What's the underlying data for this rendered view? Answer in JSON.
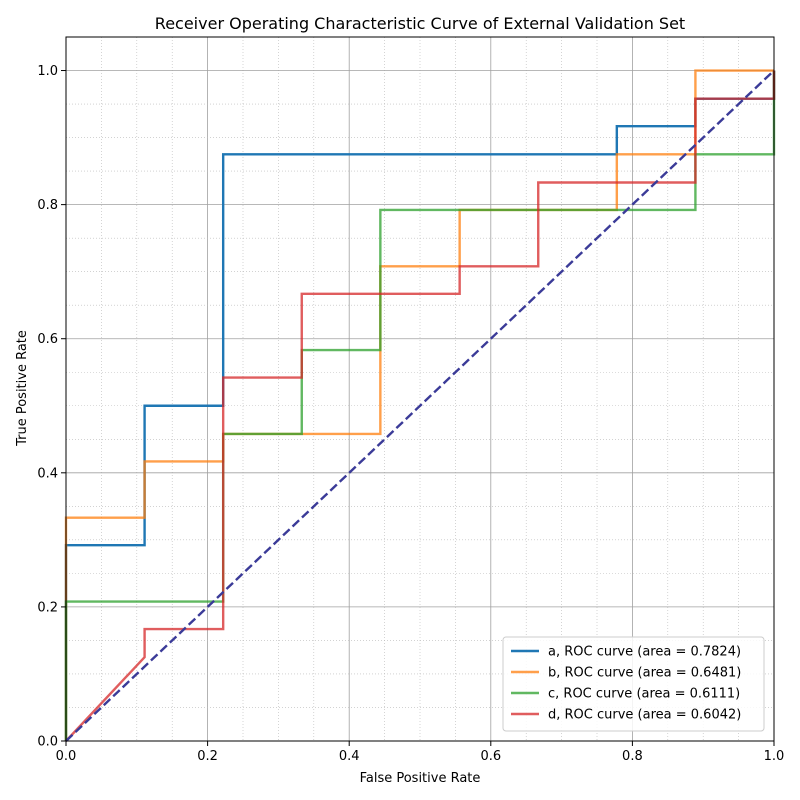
{
  "chart_data": {
    "type": "line",
    "title": "Receiver Operating Characteristic Curve of External Validation Set",
    "xlabel": "False Positive Rate",
    "ylabel": "True Positive Rate",
    "xlim": [
      0.0,
      1.0
    ],
    "ylim": [
      0.0,
      1.05
    ],
    "x_ticks": [
      0.0,
      0.2,
      0.4,
      0.6,
      0.8,
      1.0
    ],
    "y_ticks": [
      0.0,
      0.2,
      0.4,
      0.6,
      0.8,
      1.0
    ],
    "x_tick_labels": [
      "0.0",
      "0.2",
      "0.4",
      "0.6",
      "0.8",
      "1.0"
    ],
    "y_tick_labels": [
      "0.0",
      "0.2",
      "0.4",
      "0.6",
      "0.8",
      "1.0"
    ],
    "grid": "major and minor",
    "legend_position": "lower-right",
    "series": [
      {
        "name": "a, ROC curve (area = 0.7824)",
        "color": "#1f77b4",
        "x": [
          0.0,
          0.0,
          0.111,
          0.111,
          0.222,
          0.222,
          0.778,
          0.778,
          0.889,
          0.889,
          1.0,
          1.0
        ],
        "y": [
          0.0,
          0.292,
          0.292,
          0.5,
          0.5,
          0.875,
          0.875,
          0.917,
          0.917,
          0.958,
          0.958,
          1.0
        ]
      },
      {
        "name": "b, ROC curve (area = 0.6481)",
        "color": "#ff7f0e",
        "x": [
          0.0,
          0.0,
          0.111,
          0.111,
          0.222,
          0.222,
          0.444,
          0.444,
          0.556,
          0.556,
          0.778,
          0.778,
          0.889,
          0.889,
          1.0
        ],
        "y": [
          0.0,
          0.333,
          0.333,
          0.417,
          0.417,
          0.458,
          0.458,
          0.708,
          0.708,
          0.792,
          0.792,
          0.875,
          0.875,
          1.0,
          1.0
        ]
      },
      {
        "name": "c, ROC curve (area = 0.6111)",
        "color": "#2ca02c",
        "x": [
          0.0,
          0.0,
          0.222,
          0.222,
          0.333,
          0.333,
          0.444,
          0.444,
          0.889,
          0.889,
          1.0,
          1.0
        ],
        "y": [
          0.0,
          0.208,
          0.208,
          0.458,
          0.458,
          0.583,
          0.583,
          0.792,
          0.792,
          0.875,
          0.875,
          1.0
        ]
      },
      {
        "name": "d, ROC curve (area = 0.6042)",
        "color": "#d62728",
        "x": [
          0.0,
          0.111,
          0.111,
          0.222,
          0.222,
          0.333,
          0.333,
          0.556,
          0.556,
          0.667,
          0.667,
          0.889,
          0.889,
          1.0,
          1.0
        ],
        "y": [
          0.0,
          0.125,
          0.167,
          0.167,
          0.542,
          0.542,
          0.667,
          0.667,
          0.708,
          0.708,
          0.833,
          0.833,
          0.958,
          0.958,
          1.0
        ]
      }
    ],
    "reference_line": {
      "x": [
        0.0,
        1.0
      ],
      "y": [
        0.0,
        1.0
      ],
      "color": "#3b3b98",
      "style": "dashed"
    }
  }
}
